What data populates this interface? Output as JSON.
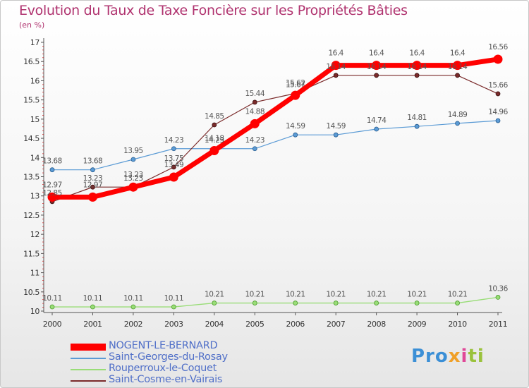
{
  "title": "Evolution du Taux de Taxe Foncière sur les Propriétés Bâties",
  "unit": "(en %)",
  "logo": {
    "text": "Proxiti",
    "colors": [
      "#3b8fd6",
      "#f0a028",
      "#e04898",
      "#9ac23c"
    ]
  },
  "chart_data": {
    "type": "line",
    "x": [
      "2000",
      "2001",
      "2002",
      "2003",
      "2004",
      "2005",
      "2006",
      "2007",
      "2008",
      "2009",
      "2010",
      "2011"
    ],
    "ylim": [
      10,
      17
    ],
    "yticks": [
      "10",
      "10.5",
      "11",
      "11.5",
      "12",
      "12.5",
      "13",
      "13.5",
      "14",
      "14.5",
      "15",
      "15.5",
      "16",
      "16.5",
      "17"
    ],
    "grid": false,
    "legend_position": "bottom-left",
    "series": [
      {
        "name": "NOGENT-LE-BERNARD",
        "color": "#ff0000",
        "values": [
          12.97,
          12.97,
          13.23,
          13.49,
          14.18,
          14.88,
          15.62,
          16.4,
          16.4,
          16.4,
          16.4,
          16.56
        ],
        "labels": [
          "12.97",
          "12.97",
          "13.23",
          "13.49",
          "14.18",
          "14.88",
          "15.62",
          "16.4",
          "16.4",
          "16.4",
          "16.4",
          "16.56"
        ]
      },
      {
        "name": "Saint-Georges-du-Rosay",
        "color": "#5b9bd5",
        "values": [
          13.68,
          13.68,
          13.95,
          14.23,
          14.23,
          14.23,
          14.59,
          14.59,
          14.74,
          14.81,
          14.89,
          14.96
        ],
        "labels": [
          "13.68",
          "13.68",
          "13.95",
          "14.23",
          "14.23",
          "14.23",
          "14.59",
          "14.59",
          "14.74",
          "14.81",
          "14.89",
          "14.96"
        ]
      },
      {
        "name": "Rouperroux-le-Coquet",
        "color": "#99dd77",
        "values": [
          10.11,
          10.11,
          10.11,
          10.11,
          10.21,
          10.21,
          10.21,
          10.21,
          10.21,
          10.21,
          10.21,
          10.36
        ],
        "labels": [
          "10.11",
          "10.11",
          "10.11",
          "10.11",
          "10.21",
          "10.21",
          "10.21",
          "10.21",
          "10.21",
          "10.21",
          "10.21",
          "10.36"
        ]
      },
      {
        "name": "Saint-Cosme-en-Vairais",
        "color": "#7a2a2a",
        "values": [
          12.85,
          13.23,
          13.23,
          13.75,
          14.85,
          15.44,
          15.67,
          16.14,
          16.14,
          16.14,
          16.14,
          15.66
        ],
        "labels": [
          "12.85",
          "13.23",
          "13.23",
          "13.75",
          "14.85",
          "15.44",
          "15.67",
          "16.14",
          "16.14",
          "16.14",
          "16.14",
          "15.66"
        ]
      }
    ]
  }
}
